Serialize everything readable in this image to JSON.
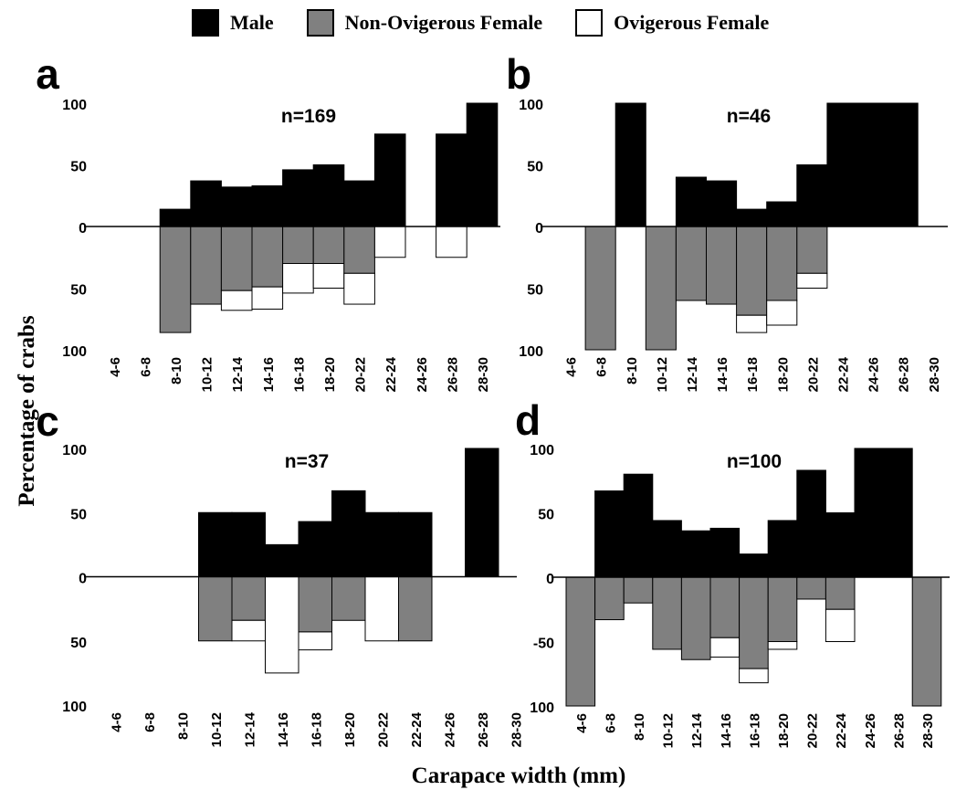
{
  "legend": [
    {
      "label": "Male",
      "color": "#000000"
    },
    {
      "label": "Non-Ovigerous Female",
      "color": "#808080"
    },
    {
      "label": "Ovigerous Female",
      "color": "#ffffff"
    }
  ],
  "ylabel": "Percentage of crabs",
  "xlabel": "Carapace width (mm)",
  "chart_data": [
    {
      "type": "bar",
      "panel": "a",
      "annotation": "n=169",
      "categories": [
        "4-6",
        "6-8",
        "8-10",
        "10-12",
        "12-14",
        "14-16",
        "16-18",
        "18-20",
        "20-22",
        "22-24",
        "24-26",
        "26-28",
        "28-30"
      ],
      "yticks": [
        "100",
        "50",
        "0",
        "50",
        "100"
      ],
      "ylim": [
        -100,
        100
      ],
      "series": [
        {
          "name": "Male",
          "values": [
            0,
            0,
            14,
            37,
            32,
            33,
            46,
            50,
            37,
            75,
            0,
            75,
            100
          ]
        },
        {
          "name": "Non-Ovigerous Female",
          "values": [
            0,
            0,
            86,
            63,
            52,
            49,
            30,
            30,
            38,
            0,
            0,
            0,
            0
          ]
        },
        {
          "name": "Ovigerous Female",
          "values": [
            0,
            0,
            0,
            0,
            16,
            18,
            24,
            20,
            25,
            25,
            0,
            25,
            0
          ]
        }
      ]
    },
    {
      "type": "bar",
      "panel": "b",
      "annotation": "n=46",
      "categories": [
        "4-6",
        "6-8",
        "8-10",
        "10-12",
        "12-14",
        "14-16",
        "16-18",
        "18-20",
        "20-22",
        "22-24",
        "24-26",
        "26-28",
        "28-30"
      ],
      "yticks": [
        "100",
        "50",
        "0",
        "50",
        "100"
      ],
      "ylim": [
        -100,
        100
      ],
      "series": [
        {
          "name": "Male",
          "values": [
            0,
            0,
            100,
            0,
            40,
            37,
            14,
            20,
            50,
            100,
            100,
            100,
            0
          ]
        },
        {
          "name": "Non-Ovigerous Female",
          "values": [
            0,
            100,
            0,
            100,
            60,
            63,
            72,
            60,
            38,
            0,
            0,
            0,
            0
          ]
        },
        {
          "name": "Ovigerous Female",
          "values": [
            0,
            0,
            0,
            0,
            0,
            0,
            14,
            20,
            12,
            0,
            0,
            0,
            0
          ]
        }
      ]
    },
    {
      "type": "bar",
      "panel": "c",
      "annotation": "n=37",
      "categories": [
        "4-6",
        "6-8",
        "8-10",
        "10-12",
        "12-14",
        "14-16",
        "16-18",
        "18-20",
        "20-22",
        "22-24",
        "24-26",
        "26-28",
        "28-30"
      ],
      "yticks": [
        "100",
        "50",
        "0",
        "50",
        "100"
      ],
      "ylim": [
        -100,
        100
      ],
      "series": [
        {
          "name": "Male",
          "values": [
            0,
            0,
            0,
            50,
            50,
            25,
            43,
            67,
            50,
            50,
            0,
            100,
            0
          ]
        },
        {
          "name": "Non-Ovigerous Female",
          "values": [
            0,
            0,
            0,
            50,
            34,
            0,
            43,
            34,
            0,
            50,
            0,
            0,
            0
          ]
        },
        {
          "name": "Ovigerous Female",
          "values": [
            0,
            0,
            0,
            0,
            16,
            75,
            14,
            0,
            50,
            0,
            0,
            0,
            0
          ]
        }
      ]
    },
    {
      "type": "bar",
      "panel": "d",
      "annotation": "n=100",
      "categories": [
        "4-6",
        "6-8",
        "8-10",
        "10-12",
        "12-14",
        "14-16",
        "16-18",
        "18-20",
        "20-22",
        "22-24",
        "24-26",
        "26-28",
        "28-30"
      ],
      "yticks": [
        "100",
        "50",
        "0",
        "-50",
        "100"
      ],
      "ylim": [
        -100,
        100
      ],
      "series": [
        {
          "name": "Male",
          "values": [
            0,
            67,
            80,
            44,
            36,
            38,
            18,
            44,
            83,
            50,
            100,
            100,
            0
          ]
        },
        {
          "name": "Non-Ovigerous Female",
          "values": [
            100,
            33,
            20,
            56,
            64,
            47,
            71,
            50,
            17,
            25,
            0,
            0,
            100
          ]
        },
        {
          "name": "Ovigerous Female",
          "values": [
            0,
            0,
            0,
            0,
            0,
            15,
            11,
            6,
            0,
            25,
            0,
            0,
            0
          ]
        }
      ]
    }
  ]
}
